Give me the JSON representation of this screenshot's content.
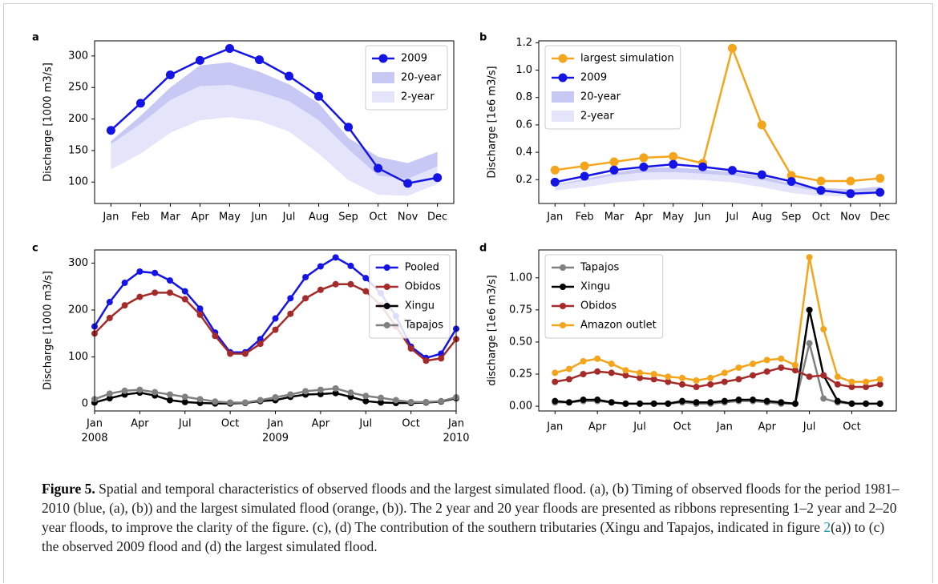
{
  "chart_data": [
    {
      "type": "line",
      "label": "a",
      "y_label": "Discharge [1000 m3/s]",
      "categories": [
        "Jan",
        "Feb",
        "Mar",
        "Apr",
        "May",
        "Jun",
        "Jul",
        "Aug",
        "Sep",
        "Oct",
        "Nov",
        "Dec"
      ],
      "series": [
        {
          "name": "2009",
          "color": "#1414e6",
          "values": [
            182,
            225,
            270,
            293,
            312,
            294,
            268,
            236,
            187,
            122,
            98,
            107
          ]
        }
      ],
      "ribbons": [
        {
          "name": "20-year",
          "color": "#c8c8f5",
          "lower": [
            160,
            192,
            230,
            252,
            254,
            243,
            228,
            198,
            152,
            110,
            105,
            125
          ],
          "upper": [
            165,
            205,
            250,
            285,
            290,
            275,
            255,
            225,
            170,
            140,
            130,
            148
          ]
        },
        {
          "name": "2-year",
          "color": "#e4e4fb",
          "lower": [
            120,
            145,
            178,
            198,
            203,
            197,
            180,
            145,
            103,
            80,
            78,
            97
          ],
          "upper": [
            160,
            192,
            230,
            252,
            254,
            243,
            228,
            198,
            152,
            110,
            105,
            125
          ]
        }
      ],
      "ylim": [
        66,
        324
      ],
      "yticks": [
        100,
        150,
        200,
        250,
        300
      ],
      "legend": "upper right"
    },
    {
      "type": "line",
      "label": "b",
      "y_label": "Discharge [1e6 m3/s]",
      "categories": [
        "Jan",
        "Feb",
        "Mar",
        "Apr",
        "May",
        "Jun",
        "Jul",
        "Aug",
        "Sep",
        "Oct",
        "Nov",
        "Dec"
      ],
      "series": [
        {
          "name": "largest simulation",
          "color": "#f5a51c",
          "values": [
            0.27,
            0.3,
            0.33,
            0.36,
            0.37,
            0.32,
            1.16,
            0.6,
            0.23,
            0.19,
            0.19,
            0.21
          ]
        },
        {
          "name": "2009",
          "color": "#1414e6",
          "values": [
            0.182,
            0.225,
            0.27,
            0.293,
            0.312,
            0.294,
            0.268,
            0.236,
            0.187,
            0.122,
            0.098,
            0.107
          ]
        }
      ],
      "ribbons": [
        {
          "name": "20-year",
          "color": "#c8c8f5",
          "lower": [
            0.16,
            0.192,
            0.23,
            0.252,
            0.254,
            0.243,
            0.228,
            0.198,
            0.152,
            0.11,
            0.105,
            0.125
          ],
          "upper": [
            0.165,
            0.205,
            0.25,
            0.285,
            0.29,
            0.275,
            0.255,
            0.225,
            0.17,
            0.14,
            0.13,
            0.148
          ]
        },
        {
          "name": "2-year",
          "color": "#e4e4fb",
          "lower": [
            0.12,
            0.145,
            0.178,
            0.198,
            0.203,
            0.197,
            0.18,
            0.145,
            0.103,
            0.08,
            0.078,
            0.097
          ],
          "upper": [
            0.16,
            0.192,
            0.23,
            0.252,
            0.254,
            0.243,
            0.228,
            0.198,
            0.152,
            0.11,
            0.105,
            0.125
          ]
        }
      ],
      "ylim": [
        0.026,
        1.214
      ],
      "yticks": [
        0.2,
        0.4,
        0.6,
        0.8,
        {
          "value": 1,
          "label": "1.0"
        },
        1.2
      ],
      "legend": "upper left"
    },
    {
      "type": "line",
      "label": "c",
      "y_label": "Discharge [1000 m3/s]",
      "x": [
        "2008-01",
        "2008-02",
        "2008-03",
        "2008-04",
        "2008-05",
        "2008-06",
        "2008-07",
        "2008-08",
        "2008-09",
        "2008-10",
        "2008-11",
        "2008-12",
        "2009-01",
        "2009-02",
        "2009-03",
        "2009-04",
        "2009-05",
        "2009-06",
        "2009-07",
        "2009-08",
        "2009-09",
        "2009-10",
        "2009-11",
        "2009-12",
        "2010-01"
      ],
      "xticks": [
        {
          "value": "2008-01",
          "label": "Jan",
          "year": "2008"
        },
        {
          "value": "2008-04",
          "label": "Apr"
        },
        {
          "value": "2008-07",
          "label": "Jul"
        },
        {
          "value": "2008-10",
          "label": "Oct"
        },
        {
          "value": "2009-01",
          "label": "Jan",
          "year": "2009"
        },
        {
          "value": "2009-04",
          "label": "Apr"
        },
        {
          "value": "2009-07",
          "label": "Jul"
        },
        {
          "value": "2009-10",
          "label": "Oct"
        },
        {
          "value": "2010-01",
          "label": "Jan",
          "year": "2010"
        }
      ],
      "series": [
        {
          "name": "Pooled",
          "color": "#1414e6",
          "values": [
            165,
            217,
            258,
            282,
            279,
            263,
            240,
            203,
            152,
            110,
            110,
            138,
            182,
            225,
            270,
            293,
            312,
            294,
            268,
            236,
            187,
            122,
            98,
            107,
            160
          ]
        },
        {
          "name": "Obidos",
          "color": "#a52a2a",
          "values": [
            150,
            183,
            210,
            228,
            237,
            237,
            223,
            190,
            145,
            107,
            107,
            128,
            158,
            192,
            225,
            243,
            255,
            255,
            240,
            210,
            165,
            118,
            92,
            97,
            138
          ]
        },
        {
          "name": "Xingu",
          "color": "#000000",
          "values": [
            3,
            12,
            20,
            24,
            18,
            8,
            4,
            2,
            1,
            1,
            2,
            6,
            8,
            15,
            20,
            21,
            23,
            15,
            6,
            3,
            2,
            2,
            3,
            5,
            12
          ]
        },
        {
          "name": "Tapajos",
          "color": "#808080",
          "values": [
            10,
            22,
            28,
            30,
            25,
            20,
            15,
            10,
            5,
            3,
            3,
            8,
            14,
            20,
            27,
            30,
            33,
            24,
            17,
            13,
            8,
            4,
            4,
            6,
            14
          ]
        }
      ],
      "ylim": [
        -15,
        328
      ],
      "yticks": [
        0,
        100,
        200,
        300
      ],
      "legend": "upper right"
    },
    {
      "type": "line",
      "label": "d",
      "y_label": "discharge [1e6 m3/s]",
      "categories": [
        "Jan",
        null,
        null,
        "Apr",
        null,
        null,
        "Jul",
        null,
        null,
        "Oct",
        null,
        null,
        "Jan",
        null,
        null,
        "Apr",
        null,
        null,
        "Jul",
        null,
        null,
        "Oct",
        null,
        null
      ],
      "series": [
        {
          "name": "Tapajos",
          "color": "#808080",
          "values": [
            0.03,
            0.03,
            0.04,
            0.04,
            0.03,
            0.02,
            0.02,
            0.02,
            0.02,
            0.03,
            0.02,
            0.02,
            0.03,
            0.04,
            0.04,
            0.03,
            0.02,
            0.02,
            0.49,
            0.06,
            0.03,
            0.02,
            0.02,
            0.02
          ]
        },
        {
          "name": "Xingu",
          "color": "#000000",
          "values": [
            0.04,
            0.03,
            0.05,
            0.05,
            0.03,
            0.02,
            0.02,
            0.02,
            0.02,
            0.04,
            0.03,
            0.03,
            0.04,
            0.05,
            0.05,
            0.04,
            0.03,
            0.02,
            0.75,
            0.24,
            0.04,
            0.02,
            0.02,
            0.02
          ]
        },
        {
          "name": "Obidos",
          "color": "#a52a2a",
          "values": [
            0.19,
            0.21,
            0.25,
            0.27,
            0.26,
            0.24,
            0.22,
            0.21,
            0.19,
            0.17,
            0.15,
            0.17,
            0.19,
            0.21,
            0.24,
            0.27,
            0.3,
            0.28,
            0.23,
            0.24,
            0.17,
            0.15,
            0.15,
            0.17
          ]
        },
        {
          "name": "Amazon outlet",
          "color": "#f5a51c",
          "values": [
            0.26,
            0.29,
            0.35,
            0.37,
            0.33,
            0.28,
            0.26,
            0.25,
            0.23,
            0.22,
            0.2,
            0.22,
            0.26,
            0.3,
            0.33,
            0.36,
            0.37,
            0.32,
            1.16,
            0.6,
            0.23,
            0.19,
            0.19,
            0.21
          ]
        }
      ],
      "ylim": [
        -0.037,
        1.217
      ],
      "yticks": [
        {
          "value": 0,
          "label": "0.00"
        },
        0.25,
        {
          "value": 0.5,
          "label": "0.50"
        },
        0.75,
        {
          "value": 1,
          "label": "1.00"
        }
      ],
      "legend": "upper left"
    }
  ],
  "caption": {
    "label": "Figure 5.",
    "text_before": "Spatial and temporal characteristics of observed floods and the largest simulated flood. (a), (b) Timing of observed floods for the period 1981–2010 (blue, (a), (b)) and the largest simulated flood (orange, (b)). The 2 year and 20 year floods are presented as ribbons representing 1–2 year and 2–20 year floods, to improve the clarity of the figure. (c), (d) The contribution of the southern tributaries (Xingu and Tapajos, indicated in figure ",
    "link": "2",
    "text_after": "(a)) to (c) the observed 2009 flood and (d) the largest simulated flood."
  }
}
